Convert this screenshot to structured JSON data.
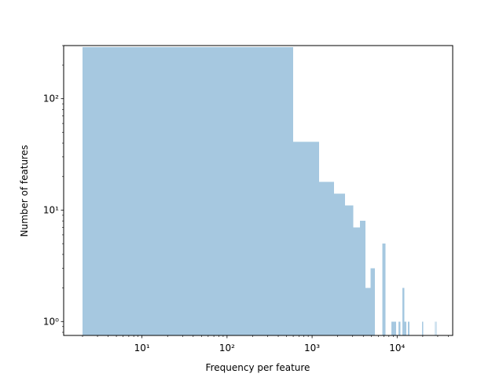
{
  "chart_data": {
    "type": "bar",
    "title": "",
    "xlabel": "Frequency per feature",
    "ylabel": "Number of features",
    "xscale": "log",
    "yscale": "log",
    "xlim": [
      1.2,
      45000
    ],
    "ylim": [
      0.75,
      300
    ],
    "grid": false,
    "bar_color": "#a6c8e0",
    "x_ticks": [
      {
        "value": 10,
        "label": "10¹"
      },
      {
        "value": 100,
        "label": "10²"
      },
      {
        "value": 1000,
        "label": "10³"
      },
      {
        "value": 10000,
        "label": "10⁴"
      }
    ],
    "y_ticks": [
      {
        "value": 1,
        "label": "10⁰"
      },
      {
        "value": 10,
        "label": "10¹"
      },
      {
        "value": 100,
        "label": "10²"
      }
    ],
    "bins": [
      {
        "x0": 2,
        "x1": 600,
        "count": 290
      },
      {
        "x0": 600,
        "x1": 1210,
        "count": 41
      },
      {
        "x0": 1210,
        "x1": 1820,
        "count": 18
      },
      {
        "x0": 1820,
        "x1": 2430,
        "count": 14
      },
      {
        "x0": 2430,
        "x1": 3040,
        "count": 11
      },
      {
        "x0": 3040,
        "x1": 3650,
        "count": 7
      },
      {
        "x0": 3650,
        "x1": 4260,
        "count": 8
      },
      {
        "x0": 4260,
        "x1": 4870,
        "count": 2
      },
      {
        "x0": 4870,
        "x1": 5480,
        "count": 3
      },
      {
        "x0": 6700,
        "x1": 7310,
        "count": 5
      },
      {
        "x0": 8520,
        "x1": 9130,
        "count": 1
      },
      {
        "x0": 9130,
        "x1": 9740,
        "count": 1
      },
      {
        "x0": 10350,
        "x1": 10960,
        "count": 1
      },
      {
        "x0": 11570,
        "x1": 12180,
        "count": 2
      },
      {
        "x0": 12180,
        "x1": 12790,
        "count": 1
      },
      {
        "x0": 13400,
        "x1": 14010,
        "count": 1
      },
      {
        "x0": 19700,
        "x1": 20310,
        "count": 1
      },
      {
        "x0": 27900,
        "x1": 28510,
        "count": 1
      },
      {
        "x0": 28950,
        "x1": 29560,
        "count": 1
      }
    ]
  }
}
